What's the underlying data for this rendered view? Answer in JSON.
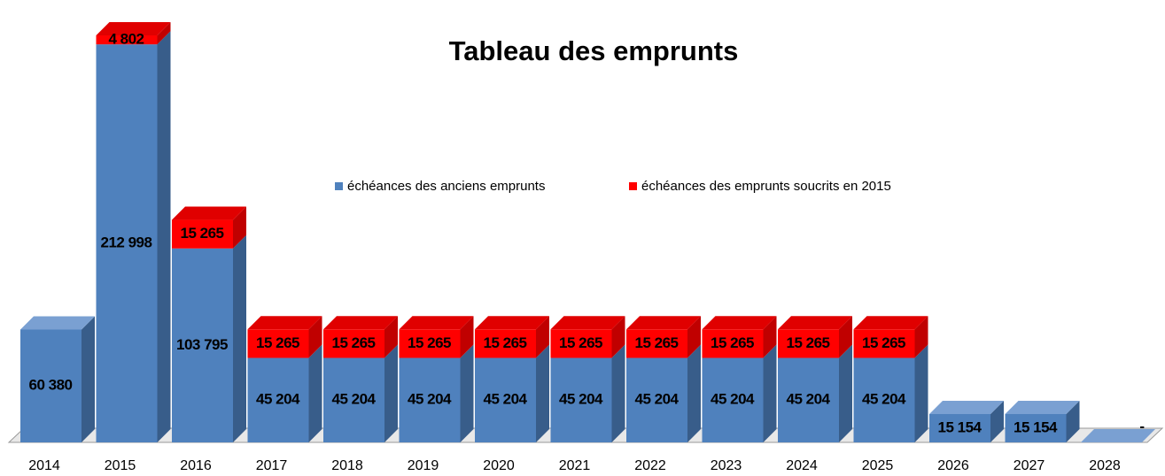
{
  "chart_data": {
    "type": "bar3d_stacked",
    "title": "Tableau des emprunts",
    "categories": [
      "2014",
      "2015",
      "2016",
      "2017",
      "2018",
      "2019",
      "2020",
      "2021",
      "2022",
      "2023",
      "2024",
      "2025",
      "2026",
      "2027",
      "2028"
    ],
    "series": [
      {
        "name": "échéances des anciens emprunts",
        "color": "#4f81bd",
        "values": [
          60380,
          212998,
          103795,
          45204,
          45204,
          45204,
          45204,
          45204,
          45204,
          45204,
          45204,
          45204,
          15154,
          15154,
          0
        ],
        "value_labels": [
          "60 380",
          "212 998",
          "103 795",
          "45 204",
          "45 204",
          "45 204",
          "45 204",
          "45 204",
          "45 204",
          "45 204",
          "45 204",
          "45 204",
          "15 154",
          "15 154",
          "-"
        ]
      },
      {
        "name": "échéances des emprunts soucrits en 2015",
        "color": "#ff0000",
        "values": [
          null,
          4802,
          15265,
          15265,
          15265,
          15265,
          15265,
          15265,
          15265,
          15265,
          15265,
          15265,
          null,
          null,
          null
        ],
        "value_labels": [
          null,
          "4 802",
          "15 265",
          "15 265",
          "15 265",
          "15 265",
          "15 265",
          "15 265",
          "15 265",
          "15 265",
          "15 265",
          "15 265",
          null,
          null,
          null
        ]
      }
    ]
  }
}
